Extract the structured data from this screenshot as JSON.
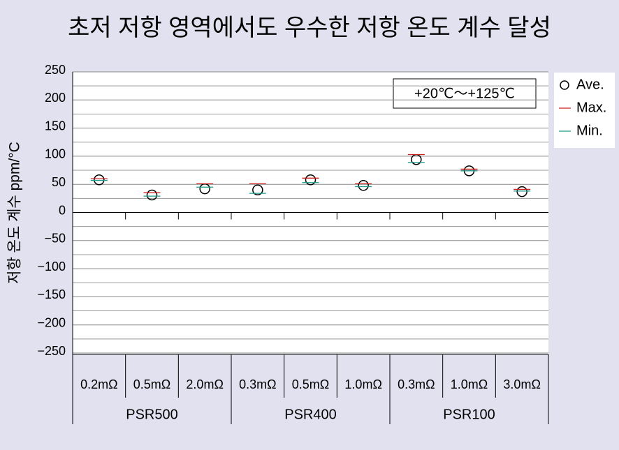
{
  "chart_data": {
    "type": "range-dot",
    "title": "초저 저항 영역에서도 우수한 저항 온도 계수 달성",
    "y_label": "저항 온도 계수 ppm/°C",
    "annotation": "+20℃～+125℃",
    "categories": [
      "0.2mΩ",
      "0.5mΩ",
      "2.0mΩ",
      "0.3mΩ",
      "0.5mΩ",
      "1.0mΩ",
      "0.3mΩ",
      "1.0mΩ",
      "3.0mΩ"
    ],
    "groups": [
      {
        "name": "PSR500",
        "count": 3
      },
      {
        "name": "PSR400",
        "count": 3
      },
      {
        "name": "PSR100",
        "count": 3
      }
    ],
    "series": [
      {
        "name": "Ave.",
        "color": "#000000",
        "marker": "circle",
        "values": [
          58,
          31,
          42,
          40,
          58,
          48,
          94,
          74,
          37
        ]
      },
      {
        "name": "Max.",
        "color": "#cc2222",
        "marker": "line",
        "values": [
          60,
          35,
          51,
          51,
          61,
          51,
          103,
          77,
          41
        ]
      },
      {
        "name": "Min.",
        "color": "#1a9a8a",
        "marker": "line",
        "values": [
          57,
          29,
          45,
          34,
          53,
          46,
          89,
          74,
          38
        ]
      }
    ],
    "ylim": [
      -250,
      250
    ],
    "yticks": [
      {
        "value": -250,
        "label": "−250"
      },
      {
        "value": -200,
        "label": "−200"
      },
      {
        "value": -150,
        "label": "−150"
      },
      {
        "value": -100,
        "label": "−100"
      },
      {
        "value": -50,
        "label": "−50"
      },
      0,
      50,
      100,
      150,
      200,
      250
    ],
    "y_minor_ticks": [
      -225,
      -175,
      -125,
      -75,
      -25,
      25,
      75,
      125,
      175,
      225
    ],
    "grid": true,
    "legend": "right"
  }
}
